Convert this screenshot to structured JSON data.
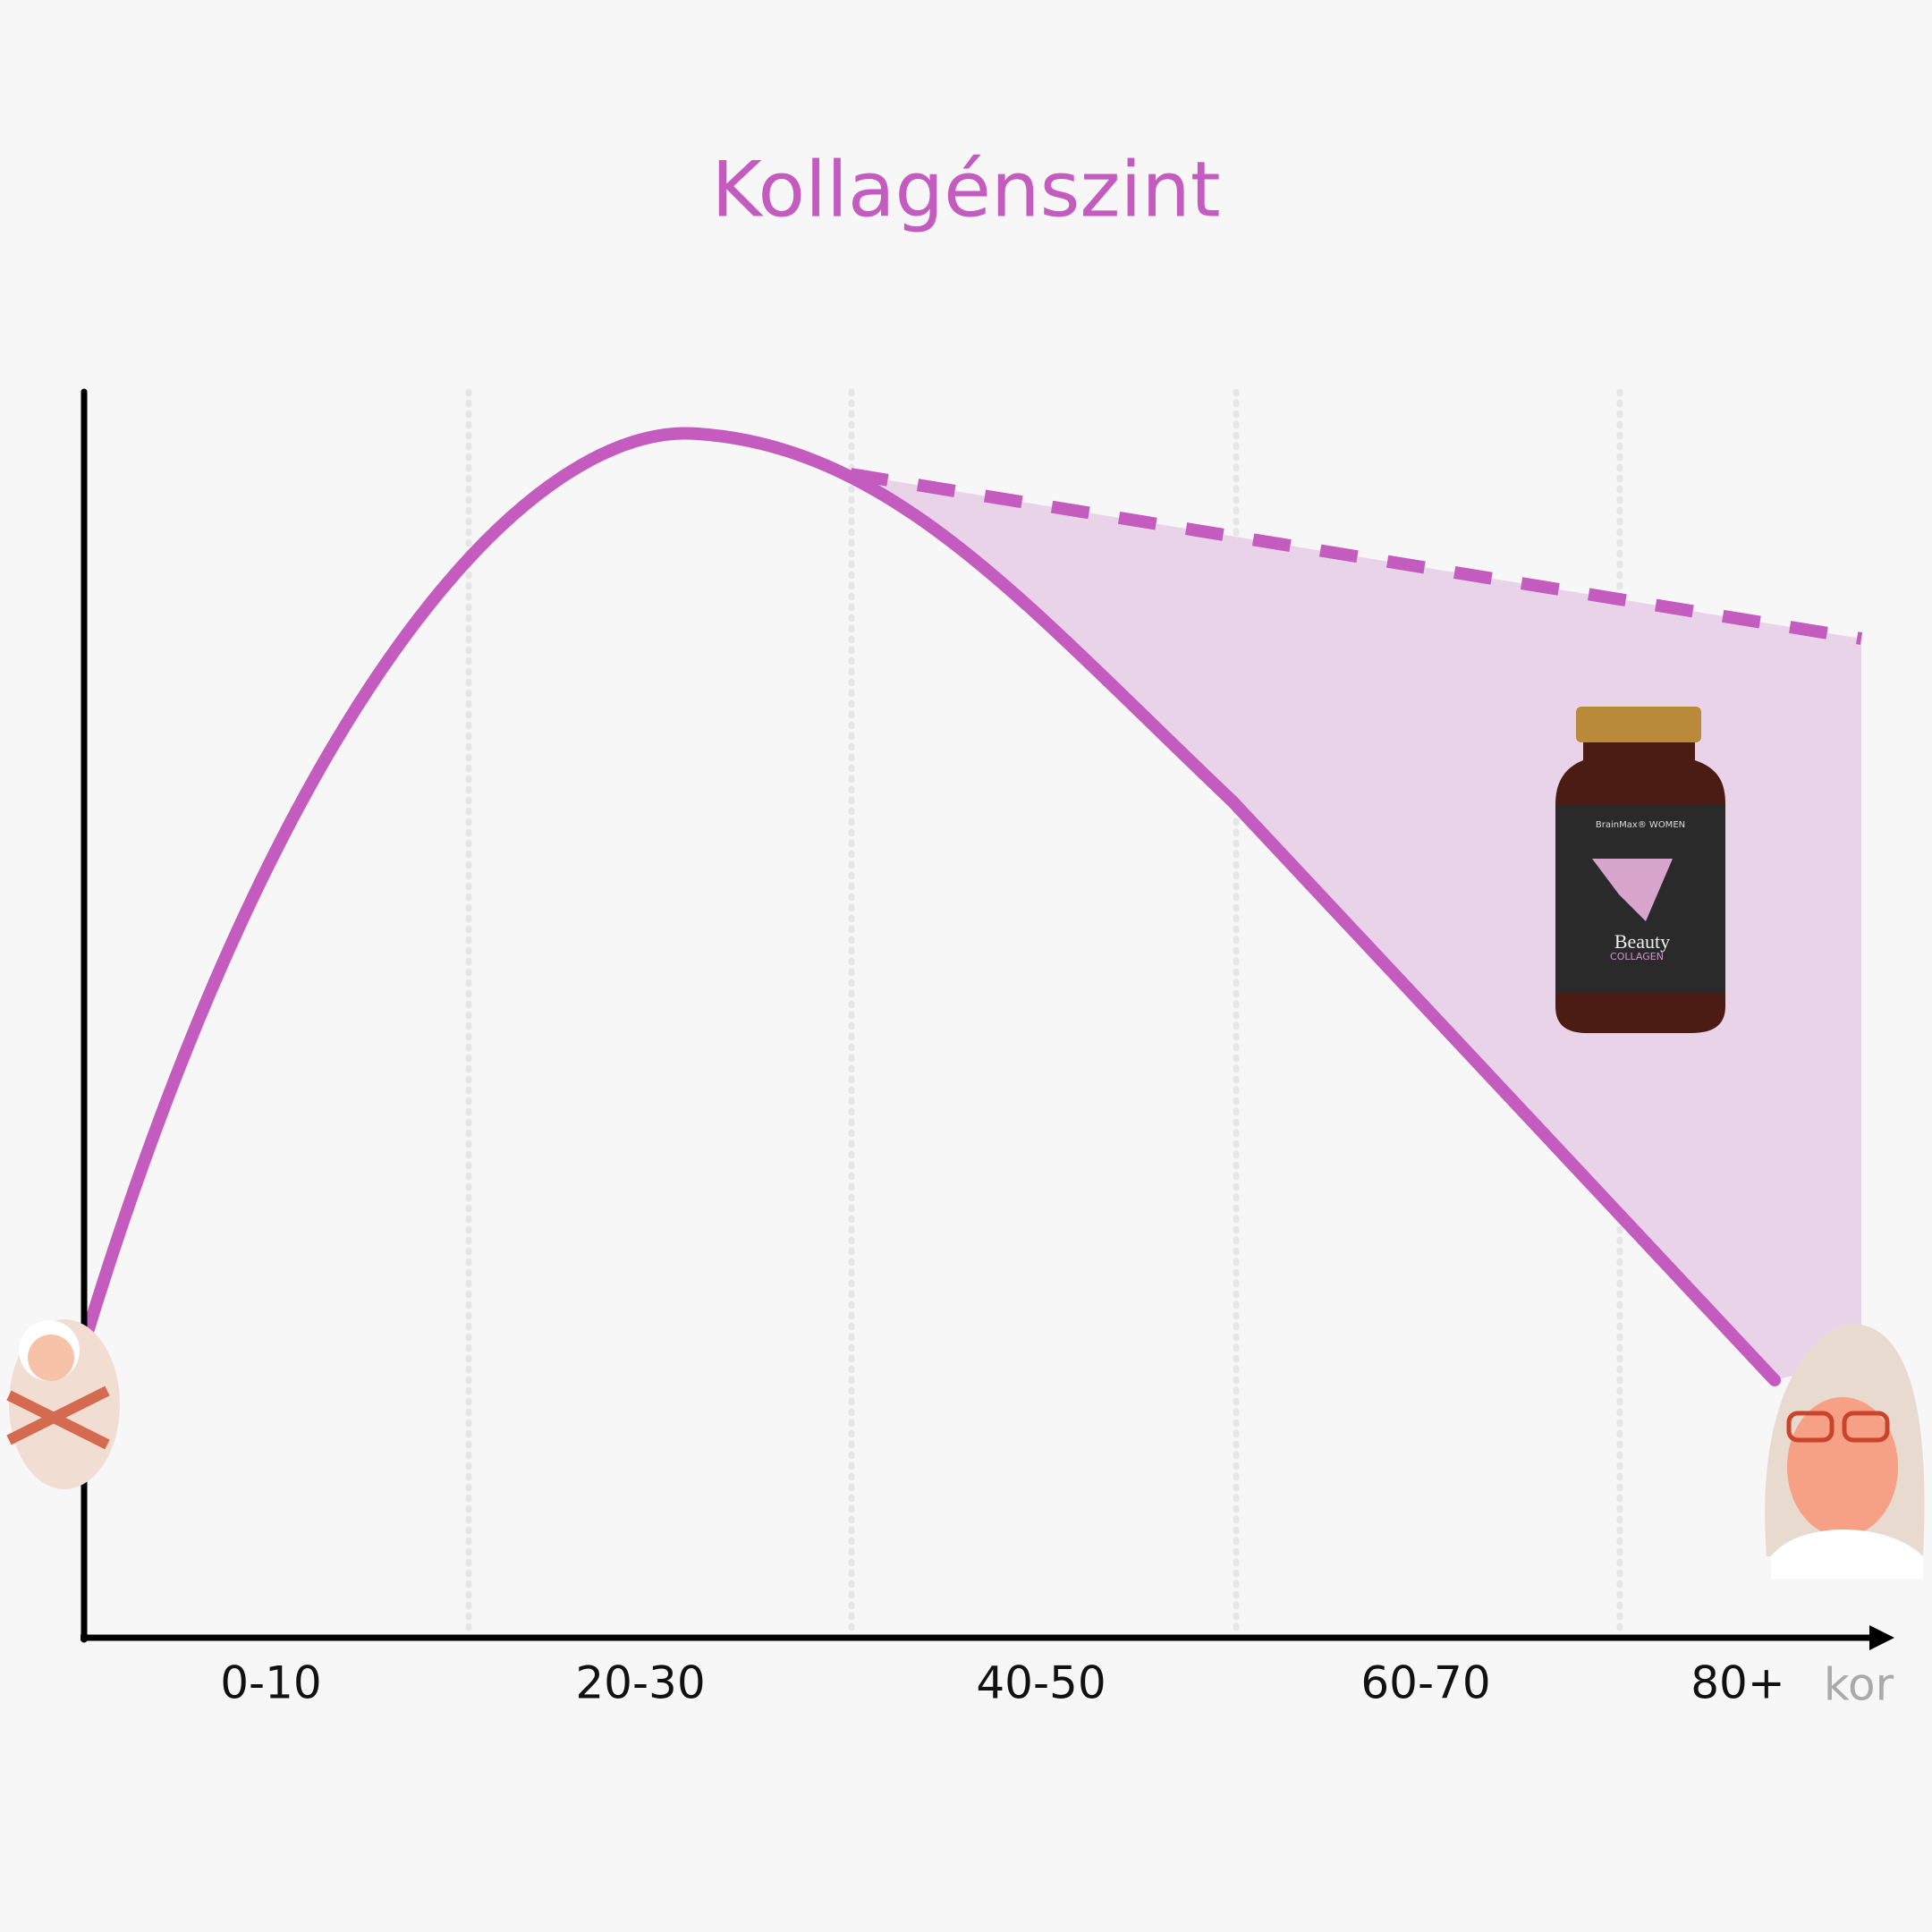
{
  "title": "Kollagénszint",
  "x_axis": {
    "labels": [
      "0-10",
      "20-30",
      "40-50",
      "60-70",
      "80+"
    ],
    "name": "kor"
  },
  "product": {
    "brand": "BrainMax® WOMEN",
    "name": "Beauty",
    "subname": "COLLAGEN"
  }
}
